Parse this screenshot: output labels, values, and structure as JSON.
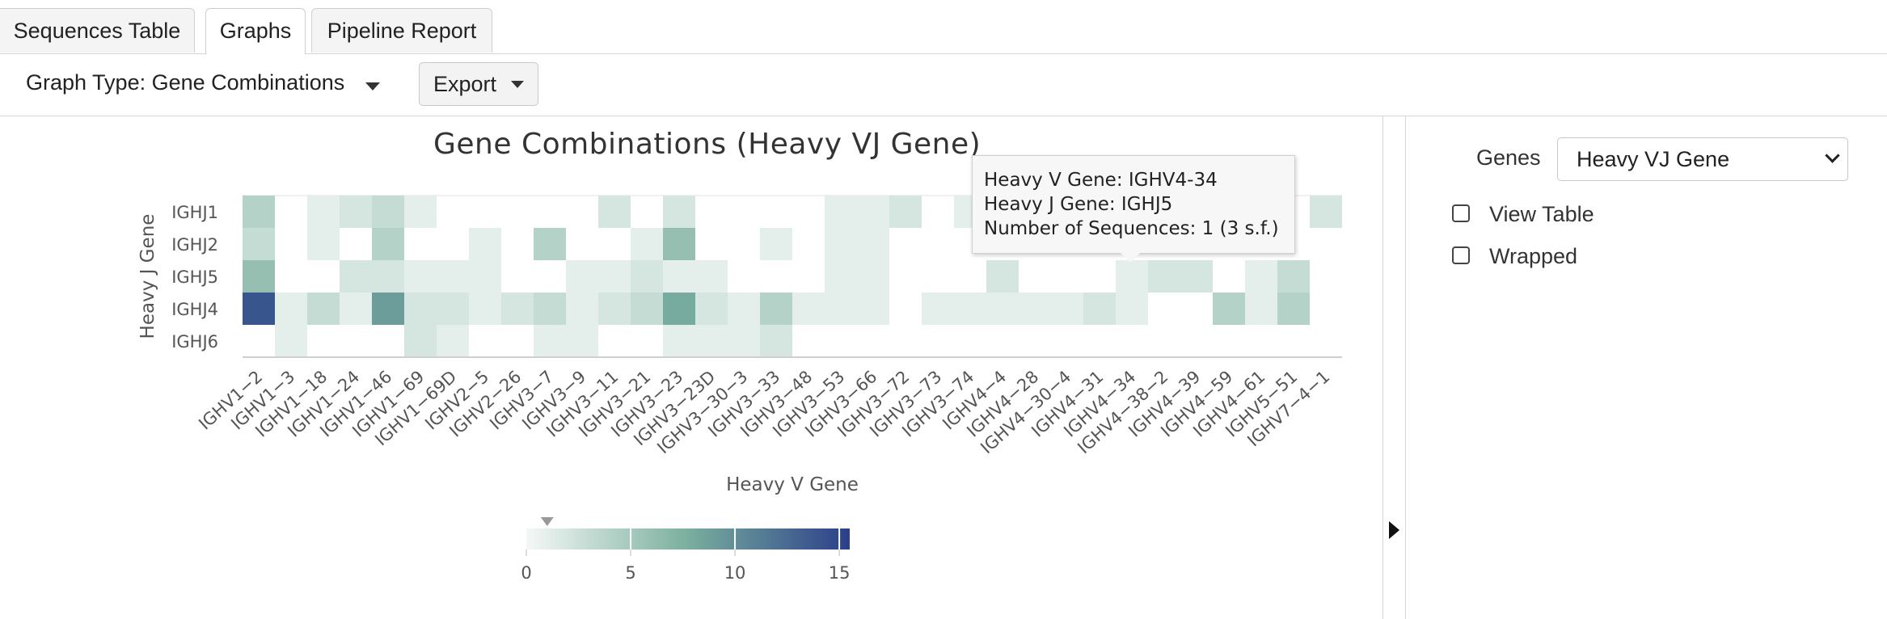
{
  "tabs": [
    {
      "label": "Sequences Table",
      "active": false
    },
    {
      "label": "Graphs",
      "active": true
    },
    {
      "label": "Pipeline Report",
      "active": false
    }
  ],
  "toolbar": {
    "graph_type_label": "Graph Type: Gene Combinations",
    "export_label": "Export"
  },
  "tooltip": {
    "line1": "Heavy V Gene: IGHV4-34",
    "line2": "Heavy J Gene: IGHJ5",
    "line3": "Number of Sequences: 1 (3 s.f.)"
  },
  "side_panel": {
    "genes_label": "Genes",
    "genes_value": "Heavy VJ Gene",
    "view_table_label": "View Table",
    "wrapped_label": "Wrapped",
    "view_table_checked": false,
    "wrapped_checked": false
  },
  "colors": {
    "low": "#f4f8f6",
    "mid": "#7aaf9e",
    "high": "#2a3f8a",
    "accent": "#20307a"
  },
  "chart_data": {
    "type": "heatmap",
    "title": "Gene Combinations (Heavy VJ Gene)",
    "xlabel": "Heavy V Gene",
    "ylabel": "Heavy J Gene",
    "x": [
      "IGHV1-2",
      "IGHV1-3",
      "IGHV1-18",
      "IGHV1-24",
      "IGHV1-46",
      "IGHV1-69",
      "IGHV1-69D",
      "IGHV2-5",
      "IGHV2-26",
      "IGHV3-7",
      "IGHV3-9",
      "IGHV3-11",
      "IGHV3-21",
      "IGHV3-23",
      "IGHV3-23D",
      "IGHV3-30-3",
      "IGHV3-33",
      "IGHV3-48",
      "IGHV3-53",
      "IGHV3-66",
      "IGHV3-72",
      "IGHV3-73",
      "IGHV3-74",
      "IGHV4-4",
      "IGHV4-28",
      "IGHV4-30-4",
      "IGHV4-31",
      "IGHV4-34",
      "IGHV4-38-2",
      "IGHV4-39",
      "IGHV4-59",
      "IGHV4-61",
      "IGHV5-51",
      "IGHV7-4-1"
    ],
    "y": [
      "IGHJ1",
      "IGHJ2",
      "IGHJ5",
      "IGHJ4",
      "IGHJ6"
    ],
    "values": [
      [
        4,
        0,
        1,
        2,
        3,
        1,
        0,
        0,
        0,
        0,
        0,
        2,
        0,
        2,
        0,
        0,
        0,
        0,
        1,
        1,
        2,
        0,
        1,
        0,
        0,
        0,
        0,
        0,
        0,
        0,
        0,
        0,
        0,
        2
      ],
      [
        3,
        0,
        1,
        0,
        4,
        0,
        0,
        1,
        0,
        4,
        0,
        0,
        1,
        6,
        0,
        0,
        1,
        0,
        1,
        1,
        0,
        0,
        0,
        0,
        0,
        0,
        0,
        0,
        0,
        0,
        0,
        0,
        0,
        0
      ],
      [
        6,
        0,
        0,
        2,
        2,
        1,
        1,
        1,
        0,
        0,
        1,
        1,
        2,
        1,
        1,
        0,
        0,
        0,
        1,
        1,
        0,
        0,
        0,
        2,
        0,
        0,
        0,
        1,
        2,
        2,
        0,
        1,
        3,
        0
      ],
      [
        14,
        1,
        3,
        1,
        9,
        2,
        2,
        1,
        2,
        3,
        1,
        2,
        3,
        8,
        2,
        1,
        4,
        1,
        1,
        1,
        0,
        1,
        1,
        1,
        1,
        1,
        2,
        1,
        0,
        0,
        4,
        1,
        4,
        0
      ],
      [
        0,
        1,
        0,
        0,
        0,
        2,
        1,
        0,
        0,
        1,
        1,
        0,
        0,
        1,
        1,
        1,
        2,
        0,
        0,
        0,
        0,
        0,
        0,
        0,
        0,
        0,
        0,
        0,
        0,
        0,
        0,
        0,
        0,
        0
      ]
    ],
    "colorbar": {
      "min": 0,
      "max": 15.5,
      "ticks": [
        "0",
        "5",
        "10",
        "15"
      ],
      "marker": 1
    },
    "legend": "bottom-center"
  }
}
